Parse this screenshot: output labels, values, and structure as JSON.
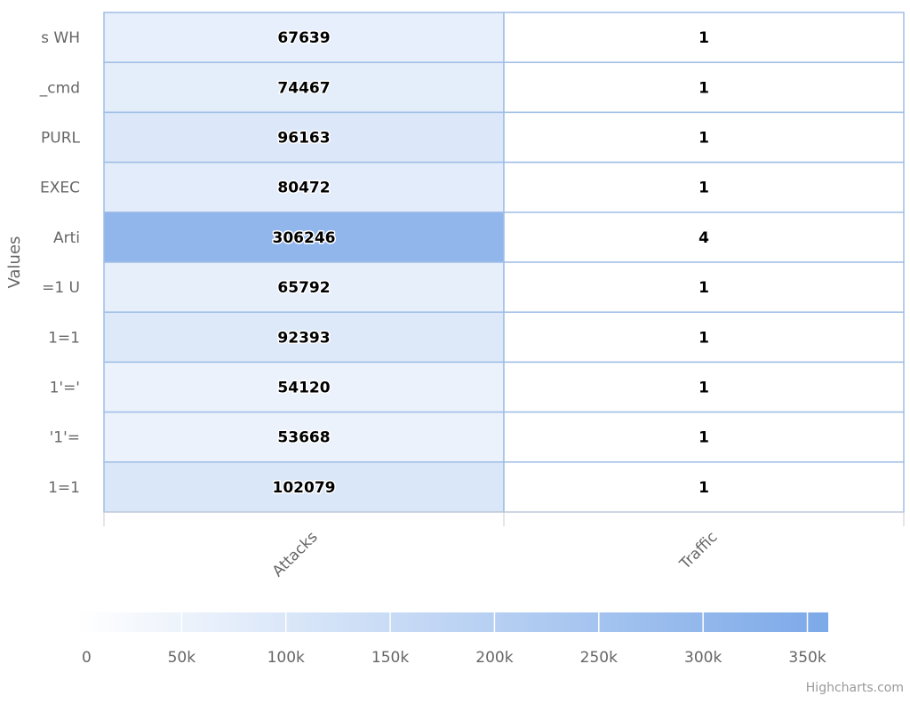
{
  "chart_data": {
    "type": "heatmap",
    "ylabel": "Values",
    "columns": [
      "Attacks",
      "Traffic"
    ],
    "rows": [
      "s WH",
      "_cmd",
      "PURL",
      "EXEC",
      "Arti",
      "=1 U",
      "1=1",
      "1'='",
      "'1'=",
      "1=1"
    ],
    "values": [
      [
        67639,
        1
      ],
      [
        74467,
        1
      ],
      [
        96163,
        1
      ],
      [
        80472,
        1
      ],
      [
        306246,
        4
      ],
      [
        65792,
        1
      ],
      [
        92393,
        1
      ],
      [
        54120,
        1
      ],
      [
        53668,
        1
      ],
      [
        102079,
        1
      ]
    ],
    "color_axis": {
      "min": 0,
      "max": 360000,
      "min_color": "#FFFFFF",
      "max_color": "#7CA9E8",
      "tick_values": [
        0,
        50000,
        100000,
        150000,
        200000,
        250000,
        300000,
        350000
      ],
      "tick_labels": [
        "0",
        "50k",
        "100k",
        "150k",
        "200k",
        "250k",
        "300k",
        "350k"
      ]
    },
    "cell_border_color": "#A0BEE6",
    "credit": "Highcharts.com"
  }
}
